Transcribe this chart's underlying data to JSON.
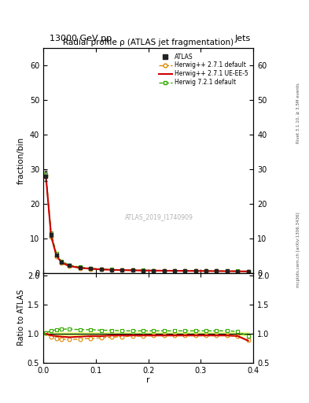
{
  "title": "Radial profile ρ (ATLAS jet fragmentation)",
  "top_label_left": "13000 GeV pp",
  "top_label_right": "Jets",
  "right_label": "Rivet 3.1.10, ≥ 3.5M events",
  "right_label2": "mcplots.cern.ch [arXiv:1306.3436]",
  "watermark": "ATLAS_2019_I1740909",
  "ylabel_main": "fraction/bin",
  "ylabel_ratio": "Ratio to ATLAS",
  "xlabel": "r",
  "xlim": [
    0,
    0.4
  ],
  "ylim_main": [
    0,
    65
  ],
  "ylim_ratio": [
    0.5,
    2.05
  ],
  "yticks_main": [
    0,
    10,
    20,
    30,
    40,
    50,
    60
  ],
  "yticks_ratio": [
    0.5,
    1.0,
    1.5,
    2.0
  ],
  "xticks": [
    0.0,
    0.1,
    0.2,
    0.3,
    0.4
  ],
  "r_values": [
    0.005,
    0.015,
    0.025,
    0.035,
    0.05,
    0.07,
    0.09,
    0.11,
    0.13,
    0.15,
    0.17,
    0.19,
    0.21,
    0.23,
    0.25,
    0.27,
    0.29,
    0.31,
    0.33,
    0.35,
    0.37,
    0.39
  ],
  "atlas_values": [
    28.0,
    11.0,
    5.2,
    3.1,
    2.1,
    1.55,
    1.25,
    1.05,
    0.92,
    0.83,
    0.77,
    0.72,
    0.68,
    0.65,
    0.62,
    0.6,
    0.57,
    0.55,
    0.53,
    0.51,
    0.49,
    0.47
  ],
  "atlas_errors": [
    1.5,
    0.5,
    0.2,
    0.12,
    0.08,
    0.06,
    0.05,
    0.04,
    0.03,
    0.03,
    0.03,
    0.03,
    0.03,
    0.03,
    0.03,
    0.02,
    0.02,
    0.02,
    0.02,
    0.02,
    0.02,
    0.02
  ],
  "ratio_herwig271_default": [
    1.01,
    0.94,
    0.92,
    0.91,
    0.9,
    0.91,
    0.92,
    0.93,
    0.94,
    0.95,
    0.96,
    0.96,
    0.97,
    0.97,
    0.97,
    0.97,
    0.97,
    0.97,
    0.97,
    0.97,
    0.96,
    0.89
  ],
  "ratio_herwig271_ueee5": [
    1.0,
    0.97,
    0.96,
    0.95,
    0.94,
    0.95,
    0.96,
    0.96,
    0.97,
    0.97,
    0.97,
    0.97,
    0.97,
    0.97,
    0.97,
    0.97,
    0.97,
    0.97,
    0.97,
    0.97,
    0.96,
    0.88
  ],
  "ratio_herwig721_default": [
    1.02,
    1.05,
    1.07,
    1.08,
    1.08,
    1.07,
    1.07,
    1.06,
    1.06,
    1.05,
    1.05,
    1.05,
    1.05,
    1.05,
    1.05,
    1.05,
    1.05,
    1.05,
    1.05,
    1.05,
    1.04,
    0.96
  ],
  "atlas_ratio_band_lo": [
    0.97,
    0.97,
    0.97,
    0.97,
    0.97,
    0.97,
    0.97,
    0.97,
    0.97,
    0.97,
    0.97,
    0.97,
    0.97,
    0.97,
    0.97,
    0.97,
    0.97,
    0.97,
    0.97,
    0.97,
    0.97,
    0.97
  ],
  "atlas_ratio_band_hi": [
    1.03,
    1.03,
    1.03,
    1.03,
    1.03,
    1.03,
    1.03,
    1.03,
    1.03,
    1.03,
    1.03,
    1.03,
    1.03,
    1.03,
    1.03,
    1.03,
    1.03,
    1.03,
    1.03,
    1.03,
    1.03,
    1.03
  ],
  "color_atlas": "#222222",
  "color_herwig271_default": "#dd8800",
  "color_herwig271_ueee5": "#cc0000",
  "color_herwig721_default": "#33aa00",
  "color_band_yellow": "#ffff88",
  "color_band_green": "#aaff88",
  "bg_color": "#ffffff"
}
